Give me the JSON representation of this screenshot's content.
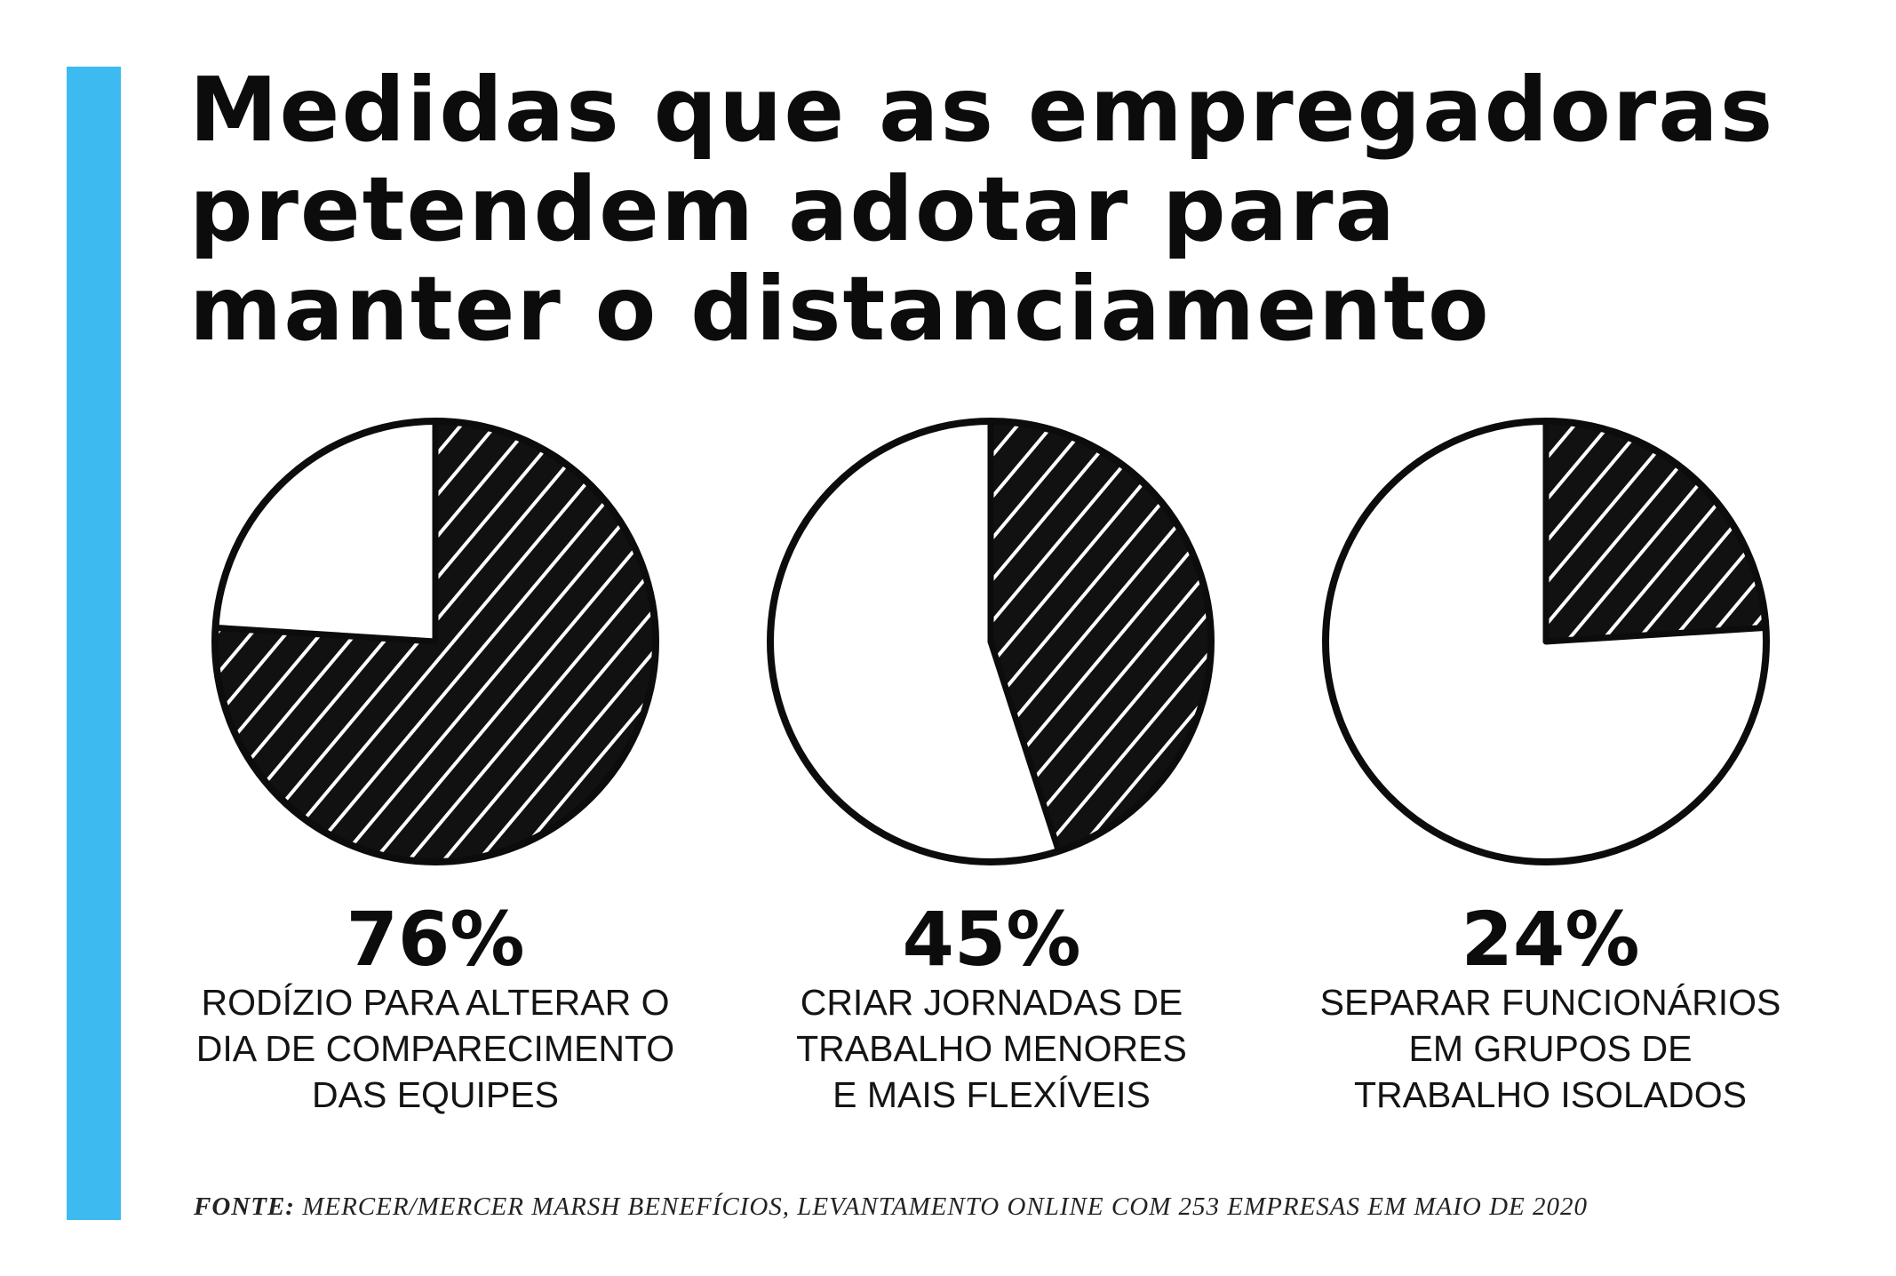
{
  "title_lines": [
    "Medidas que as empregadoras",
    "pretendem adotar para",
    "manter o distanciamento"
  ],
  "colors": {
    "accent": "#3dbbf0",
    "fill": "#111111",
    "hatch": "#ffffff",
    "stroke": "#0c0c0c"
  },
  "chart_data": [
    {
      "type": "pie",
      "values": [
        76,
        24
      ],
      "label": "76%",
      "description": [
        "RODÍZIO PARA ALTERAR O",
        "DIA DE COMPARECIMENTO",
        "DAS EQUIPES"
      ]
    },
    {
      "type": "pie",
      "values": [
        45,
        55
      ],
      "label": "45%",
      "description": [
        "CRIAR JORNADAS DE",
        "TRABALHO MENORES",
        "E MAIS FLEXÍVEIS"
      ]
    },
    {
      "type": "pie",
      "values": [
        24,
        76
      ],
      "label": "24%",
      "description": [
        "SEPARAR FUNCIONÁRIOS",
        "EM GRUPOS DE",
        "TRABALHO ISOLADOS"
      ]
    }
  ],
  "source": {
    "label": "FONTE:",
    "text": "MERCER/MERCER MARSH BENEFÍCIOS, LEVANTAMENTO ONLINE COM 253 EMPRESAS EM MAIO DE 2020"
  }
}
